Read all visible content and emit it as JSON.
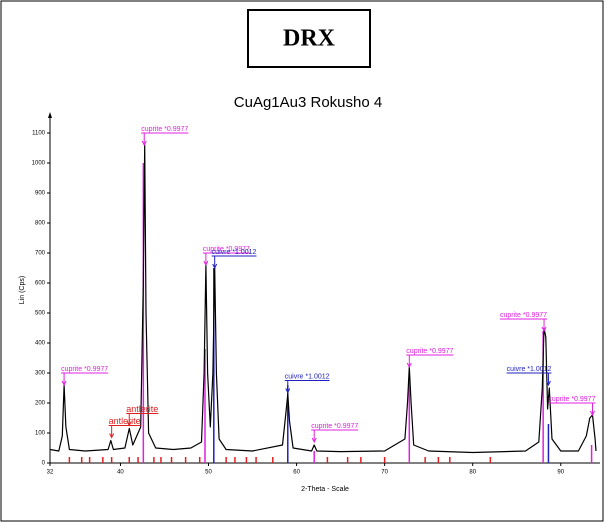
{
  "chart_data": {
    "type": "line",
    "title": "DRX",
    "subtitle": "CuAg1Au3 Rokusho 4",
    "x_label": "2-Theta - Scale",
    "y_label": "Lin (Cps)",
    "xlim": [
      32,
      94
    ],
    "ylim": [
      0,
      1150
    ],
    "xticks": [
      32,
      40,
      50,
      60,
      70,
      80,
      90
    ],
    "yticks": [
      0,
      100,
      200,
      300,
      400,
      500,
      600,
      700,
      800,
      900,
      1000,
      1100
    ],
    "series": [
      {
        "color": "#000000",
        "x": [
          32,
          33.0,
          33.4,
          33.6,
          33.8,
          34.2,
          36,
          38.6,
          38.9,
          39.2,
          40.5,
          41.0,
          41.4,
          42.3,
          42.6,
          42.75,
          42.9,
          43.2,
          44,
          46,
          48,
          49.2,
          49.5,
          49.7,
          49.9,
          50.2,
          50.5,
          50.7,
          50.9,
          51.2,
          52,
          55,
          58.4,
          58.8,
          59.0,
          59.2,
          59.6,
          61.7,
          62.0,
          62.3,
          65,
          70,
          72.3,
          72.6,
          72.8,
          73.0,
          73.3,
          75,
          80,
          86,
          87.5,
          87.9,
          88.1,
          88.3,
          88.5,
          88.7,
          89.0,
          90,
          92,
          92.9,
          93.3,
          93.6,
          93.9,
          94
        ],
        "values": [
          45,
          40,
          90,
          260,
          120,
          45,
          40,
          45,
          75,
          45,
          50,
          115,
          60,
          120,
          600,
          1060,
          500,
          100,
          50,
          45,
          50,
          70,
          300,
          660,
          300,
          120,
          300,
          650,
          300,
          80,
          45,
          40,
          60,
          170,
          230,
          140,
          50,
          40,
          60,
          40,
          38,
          40,
          80,
          200,
          320,
          200,
          60,
          40,
          35,
          40,
          70,
          250,
          450,
          420,
          180,
          250,
          80,
          40,
          40,
          90,
          150,
          160,
          80,
          40
        ]
      }
    ],
    "sticks": [
      {
        "color": "#e020e0",
        "x": [
          42.6,
          49.6,
          62.0,
          72.8,
          88.0,
          93.5
        ],
        "values": [
          1000,
          380,
          40,
          300,
          440,
          60
        ]
      },
      {
        "color": "#2020c0",
        "x": [
          50.6,
          59.0,
          88.6
        ],
        "values": [
          650,
          260,
          130
        ]
      },
      {
        "color": "#e02020",
        "x": [
          34.2,
          35.6,
          36.5,
          38.0,
          39.0,
          41.0,
          42.0,
          43.8,
          44.6,
          45.8,
          47.4,
          49.0,
          52.0,
          53.0,
          54.3,
          55.4,
          57.3,
          63.5,
          65.8,
          67.3,
          70.0,
          74.6,
          76.1,
          77.4,
          82.0
        ],
        "values": [
          20,
          20,
          20,
          20,
          20,
          20,
          20,
          20,
          20,
          20,
          20,
          20,
          20,
          20,
          20,
          20,
          20,
          20,
          20,
          20,
          20,
          20,
          20,
          20,
          20
        ]
      }
    ],
    "annotations": [
      {
        "text": "cuprite *0.9977",
        "x": 33.6,
        "y": 260,
        "color": "#e020e0"
      },
      {
        "text": "antlerite",
        "x": 39.0,
        "y": 85,
        "color": "#e02020"
      },
      {
        "text": "antlerite",
        "x": 41.0,
        "y": 125,
        "color": "#e02020"
      },
      {
        "text": "cuprite *0.9977",
        "x": 42.7,
        "y": 1060,
        "color": "#e020e0"
      },
      {
        "text": "cuprite *0.9977",
        "x": 49.7,
        "y": 660,
        "color": "#e020e0"
      },
      {
        "text": "cuivre *1.0012",
        "x": 50.7,
        "y": 650,
        "color": "#2020c0"
      },
      {
        "text": "cuivre *1.0012",
        "x": 59.0,
        "y": 235,
        "color": "#2020c0"
      },
      {
        "text": "cuprite *0.9977",
        "x": 62.0,
        "y": 70,
        "color": "#e020e0"
      },
      {
        "text": "cuprite *0.9977",
        "x": 72.8,
        "y": 320,
        "color": "#e020e0"
      },
      {
        "text": "cuprite *0.9977",
        "x": 88.1,
        "y": 440,
        "color": "#e020e0"
      },
      {
        "text": "cuivre *1.0012",
        "x": 88.6,
        "y": 260,
        "color": "#2020c0"
      },
      {
        "text": "cuprite *0.9977",
        "x": 93.6,
        "y": 160,
        "color": "#e020e0"
      }
    ]
  }
}
